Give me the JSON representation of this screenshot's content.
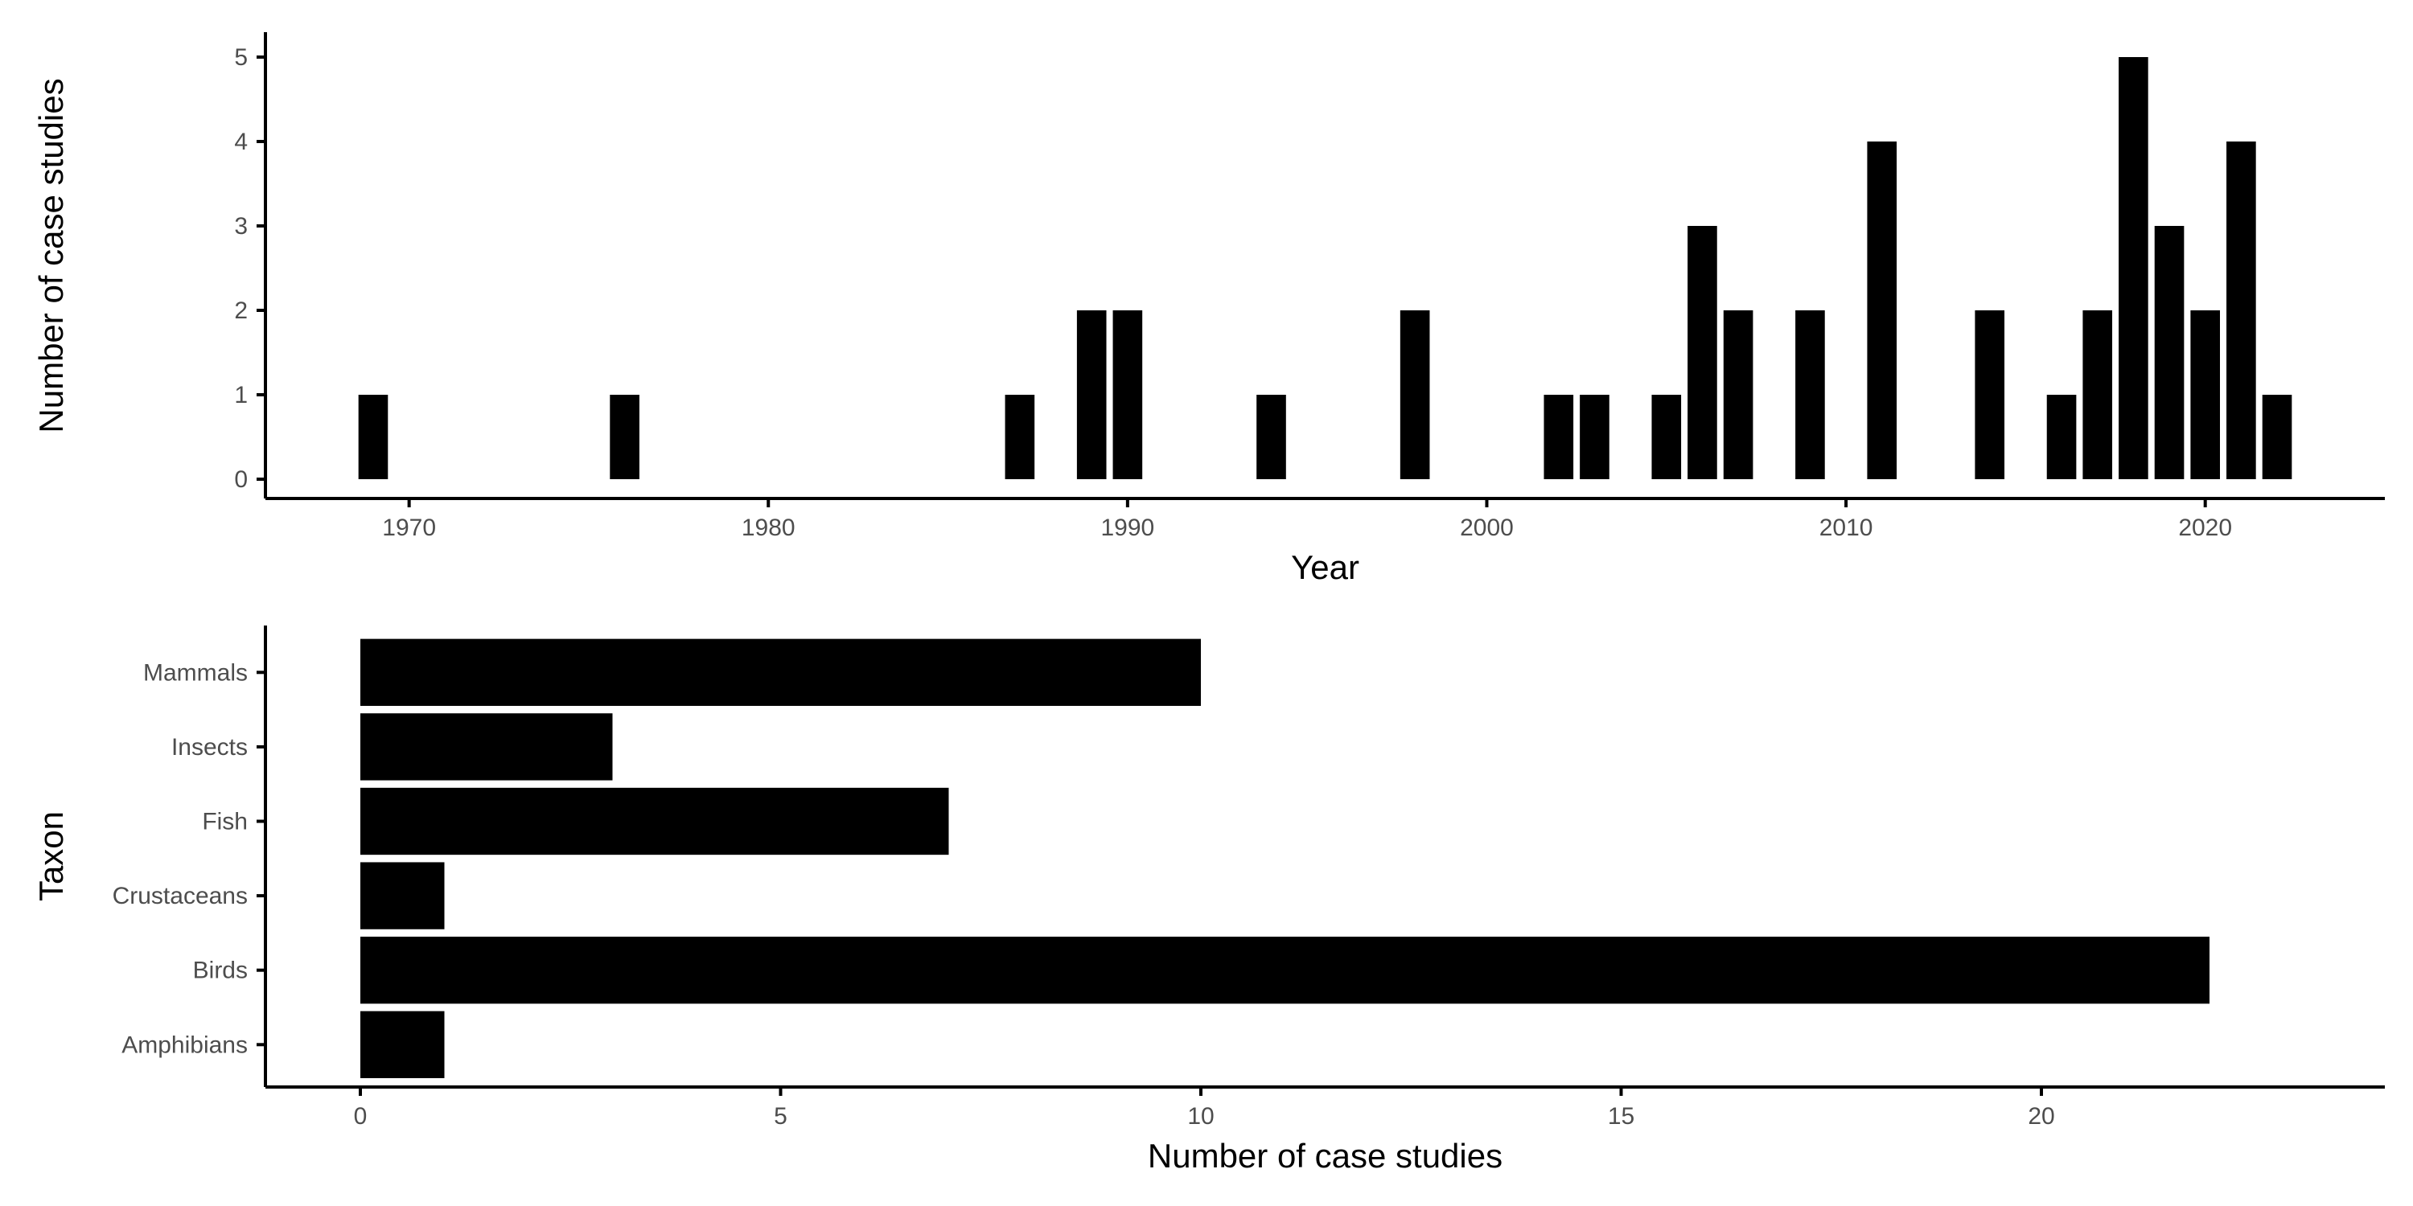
{
  "chart_data": [
    {
      "type": "bar",
      "orientation": "vertical",
      "xlabel": "Year",
      "ylabel": "Number of case studies",
      "xlim": [
        1966,
        2025
      ],
      "ylim": [
        0,
        5
      ],
      "x_ticks": [
        "1970",
        "1980",
        "1990",
        "2000",
        "2010",
        "2020"
      ],
      "y_ticks": [
        "0",
        "1",
        "2",
        "3",
        "4",
        "5"
      ],
      "grid": false,
      "bar_color": "#000000",
      "x": [
        1969,
        1976,
        1987,
        1989,
        1990,
        1994,
        1998,
        2002,
        2003,
        2005,
        2006,
        2007,
        2009,
        2011,
        2014,
        2016,
        2017,
        2018,
        2019,
        2020,
        2021,
        2022
      ],
      "values": [
        1,
        1,
        1,
        2,
        2,
        1,
        2,
        1,
        1,
        1,
        3,
        2,
        2,
        4,
        2,
        1,
        2,
        5,
        3,
        2,
        4,
        1
      ]
    },
    {
      "type": "bar",
      "orientation": "horizontal",
      "xlabel": "Number of case studies",
      "ylabel": "Taxon",
      "xlim": [
        0,
        24
      ],
      "x_ticks": [
        "0",
        "5",
        "10",
        "15",
        "20"
      ],
      "grid": false,
      "bar_color": "#000000",
      "categories": [
        "Amphibians",
        "Birds",
        "Crustaceans",
        "Fish",
        "Insects",
        "Mammals"
      ],
      "values": [
        1,
        22,
        1,
        7,
        3,
        10
      ]
    }
  ]
}
